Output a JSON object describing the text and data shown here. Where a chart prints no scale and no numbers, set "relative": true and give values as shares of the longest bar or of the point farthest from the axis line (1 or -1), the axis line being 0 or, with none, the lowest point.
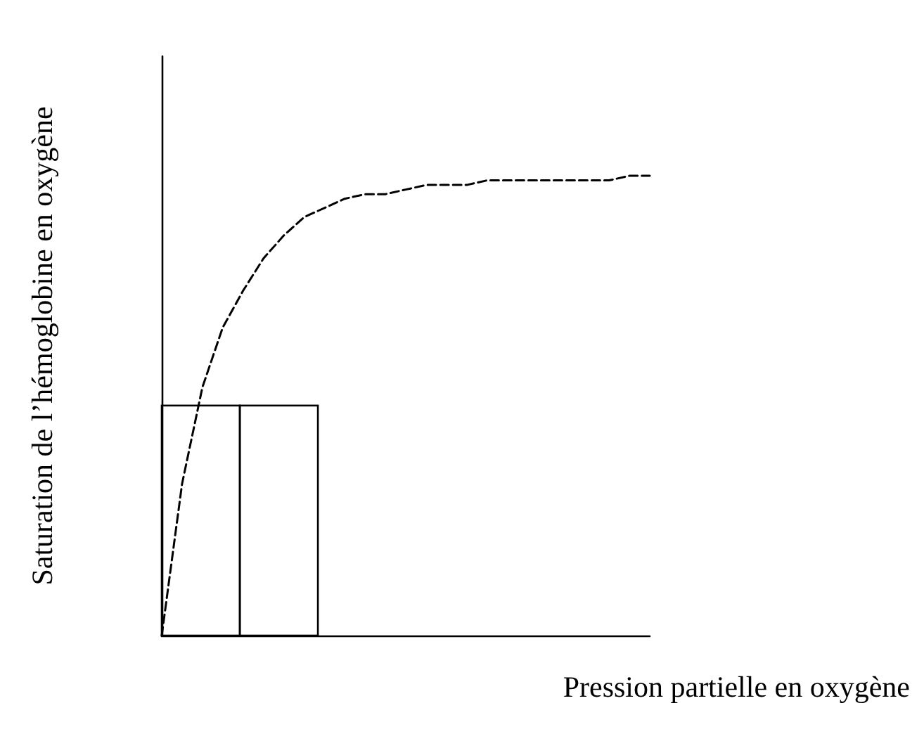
{
  "chart_data": {
    "type": "line",
    "relative": true,
    "ylabel": "Saturation de l’hémoglobine en oxygène",
    "xlabel": "Pression partielle en oxygène",
    "categories": [
      null,
      null,
      null,
      null,
      null,
      null,
      null,
      null,
      null,
      null,
      null,
      null,
      null,
      null,
      null,
      null,
      null,
      null,
      null,
      null,
      null,
      null,
      null,
      null,
      null
    ],
    "grid": false,
    "line_style": "dashed",
    "marker": "none",
    "series": [
      {
        "color": "#000000",
        "values": [
          0,
          0.33,
          0.54,
          0.67,
          0.75,
          0.82,
          0.87,
          0.91,
          0.93,
          0.95,
          0.96,
          0.96,
          0.97,
          0.98,
          0.98,
          0.98,
          0.99,
          0.99,
          0.99,
          0.99,
          0.99,
          0.99,
          0.99,
          1,
          1
        ]
      }
    ]
  }
}
